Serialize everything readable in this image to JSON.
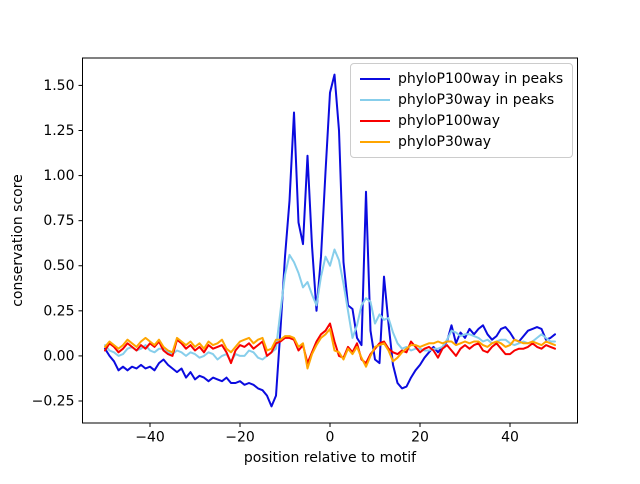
{
  "chart_data": {
    "type": "line",
    "title": "",
    "xlabel": "position relative to motif",
    "ylabel": "conservation score",
    "xlim": [
      -55,
      55
    ],
    "ylim": [
      -0.372,
      1.652
    ],
    "grid": false,
    "legend_position": "upper right",
    "x_ticks": [
      -40,
      -20,
      0,
      20,
      40
    ],
    "x_tick_labels": [
      "−40",
      "−20",
      "0",
      "20",
      "40"
    ],
    "y_ticks": [
      -0.25,
      0.0,
      0.25,
      0.5,
      0.75,
      1.0,
      1.25,
      1.5
    ],
    "y_tick_labels": [
      "−0.25",
      "0.00",
      "0.25",
      "0.50",
      "0.75",
      "1.00",
      "1.25",
      "1.50"
    ],
    "x": {
      "start": -50,
      "end": 50,
      "step": 1
    },
    "series": [
      {
        "name": "phyloP100way in peaks",
        "color": "#0b0bdf",
        "values": [
          0.04,
          0.0,
          -0.03,
          -0.08,
          -0.06,
          -0.08,
          -0.06,
          -0.07,
          -0.05,
          -0.07,
          -0.06,
          -0.08,
          -0.04,
          -0.02,
          -0.05,
          -0.07,
          -0.09,
          -0.07,
          -0.12,
          -0.09,
          -0.13,
          -0.11,
          -0.12,
          -0.14,
          -0.12,
          -0.13,
          -0.14,
          -0.12,
          -0.15,
          -0.15,
          -0.14,
          -0.16,
          -0.15,
          -0.16,
          -0.18,
          -0.19,
          -0.22,
          -0.28,
          -0.22,
          0.15,
          0.55,
          0.86,
          1.35,
          0.74,
          0.62,
          1.11,
          0.61,
          0.25,
          0.55,
          1.02,
          1.46,
          1.56,
          1.25,
          0.52,
          0.28,
          0.26,
          0.1,
          0.06,
          0.91,
          0.14,
          -0.02,
          -0.04,
          0.44,
          0.18,
          -0.05,
          -0.15,
          -0.18,
          -0.17,
          -0.12,
          -0.08,
          -0.05,
          -0.01,
          0.02,
          0.05,
          0.02,
          0.05,
          0.08,
          0.17,
          0.07,
          0.13,
          0.1,
          0.15,
          0.12,
          0.15,
          0.17,
          0.12,
          0.09,
          0.11,
          0.15,
          0.16,
          0.13,
          0.09,
          0.08,
          0.11,
          0.14,
          0.15,
          0.16,
          0.15,
          0.09,
          0.1,
          0.12
        ]
      },
      {
        "name": "phyloP30way in peaks",
        "color": "#87ceeb",
        "values": [
          0.06,
          0.03,
          0.02,
          0.0,
          0.01,
          0.04,
          0.05,
          0.03,
          0.04,
          0.06,
          0.03,
          0.02,
          0.04,
          0.04,
          0.02,
          0.01,
          0.03,
          0.02,
          0.0,
          0.02,
          0.01,
          -0.01,
          0.0,
          0.02,
          0.01,
          -0.02,
          0.0,
          0.01,
          -0.03,
          0.01,
          0.0,
          0.0,
          0.03,
          0.02,
          -0.01,
          -0.02,
          0.0,
          0.02,
          0.04,
          0.25,
          0.45,
          0.56,
          0.52,
          0.46,
          0.38,
          0.41,
          0.34,
          0.28,
          0.44,
          0.55,
          0.5,
          0.59,
          0.53,
          0.4,
          0.25,
          0.1,
          0.17,
          0.28,
          0.32,
          0.3,
          0.18,
          0.23,
          0.2,
          0.21,
          0.13,
          0.07,
          0.04,
          0.05,
          0.03,
          0.04,
          0.04,
          0.03,
          0.03,
          0.04,
          0.04,
          0.05,
          0.09,
          0.14,
          0.13,
          0.11,
          0.12,
          0.12,
          0.11,
          0.1,
          0.08,
          0.09,
          0.07,
          0.08,
          0.09,
          0.09,
          0.07,
          0.06,
          0.07,
          0.08,
          0.07,
          0.08,
          0.1,
          0.12,
          0.1,
          0.08,
          0.08
        ]
      },
      {
        "name": "phyloP100way",
        "color": "#f80000",
        "values": [
          0.03,
          0.07,
          0.05,
          0.02,
          0.04,
          0.07,
          0.05,
          0.03,
          0.06,
          0.04,
          0.07,
          0.05,
          0.08,
          0.03,
          0.01,
          0.0,
          0.09,
          0.07,
          0.04,
          0.06,
          0.03,
          0.05,
          0.02,
          0.06,
          0.04,
          0.05,
          0.06,
          0.02,
          -0.04,
          0.03,
          0.06,
          0.05,
          0.07,
          0.04,
          0.06,
          0.08,
          0.0,
          0.02,
          0.07,
          0.08,
          0.1,
          0.1,
          0.09,
          0.03,
          0.06,
          -0.04,
          0.02,
          0.08,
          0.12,
          0.14,
          0.18,
          0.08,
          0.0,
          -0.01,
          0.05,
          0.02,
          0.07,
          -0.02,
          -0.04,
          0.01,
          0.04,
          0.07,
          0.08,
          0.04,
          0.02,
          0.01,
          0.03,
          0.02,
          0.08,
          0.05,
          0.02,
          0.04,
          0.05,
          0.03,
          -0.01,
          0.04,
          0.06,
          0.03,
          0.0,
          0.04,
          0.06,
          0.04,
          0.06,
          0.07,
          0.03,
          0.02,
          0.05,
          0.07,
          0.04,
          0.01,
          0.01,
          0.03,
          0.04,
          0.04,
          0.05,
          0.07,
          0.05,
          0.04,
          0.06,
          0.05,
          0.04
        ]
      },
      {
        "name": "phyloP30way",
        "color": "#ffa500",
        "values": [
          0.05,
          0.08,
          0.06,
          0.04,
          0.06,
          0.09,
          0.07,
          0.05,
          0.08,
          0.1,
          0.08,
          0.06,
          0.09,
          0.05,
          0.03,
          0.02,
          0.1,
          0.08,
          0.06,
          0.08,
          0.05,
          0.07,
          0.04,
          0.08,
          0.06,
          0.07,
          0.09,
          0.04,
          0.02,
          0.05,
          0.08,
          0.09,
          0.1,
          0.07,
          0.09,
          0.1,
          0.03,
          0.04,
          0.09,
          0.09,
          0.11,
          0.11,
          0.1,
          0.05,
          0.07,
          -0.07,
          0.01,
          0.06,
          0.1,
          0.12,
          0.15,
          0.03,
          0.02,
          -0.02,
          0.04,
          0.01,
          0.05,
          -0.01,
          -0.06,
          0.0,
          0.05,
          0.06,
          0.07,
          0.03,
          -0.03,
          -0.01,
          0.02,
          0.04,
          0.06,
          0.06,
          0.05,
          0.06,
          0.07,
          0.07,
          0.08,
          0.07,
          0.08,
          0.08,
          0.06,
          0.07,
          0.08,
          0.07,
          0.08,
          0.08,
          0.06,
          0.05,
          0.07,
          0.08,
          0.07,
          0.05,
          0.06,
          0.09,
          0.08,
          0.07,
          0.07,
          0.08,
          0.07,
          0.06,
          0.08,
          0.07,
          0.06
        ]
      }
    ]
  }
}
